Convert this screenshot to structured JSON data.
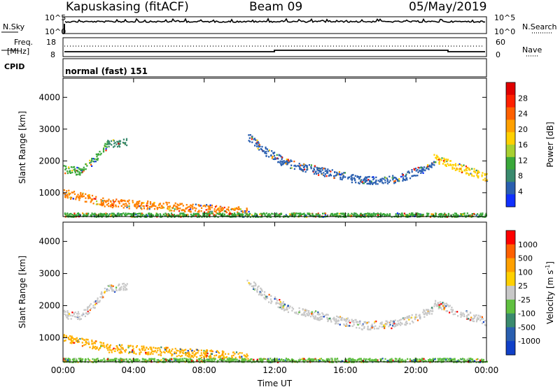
{
  "header": {
    "station": "Kapuskasing (fitACF)",
    "beam": "Beam 09",
    "date": "05/May/2019"
  },
  "top_panels": {
    "nsky_label": "N.Sky",
    "nsearch_label": "N.Search",
    "nsky_ticks": [
      "10^5",
      "10^0"
    ],
    "nsearch_ticks": [
      "10^5",
      "10^0"
    ],
    "freq_label_line1": "Freq.",
    "freq_label_line2": "[MHz]",
    "freq_ticks": [
      "18",
      "8"
    ],
    "nave_label": "Nave",
    "nave_ticks": [
      "60",
      "0"
    ],
    "cpid_label": "CPID",
    "cpid_text": "normal (fast) 151"
  },
  "chart_data": [
    {
      "type": "scatter",
      "title": "",
      "xlabel": "Time UT",
      "ylabel": "Slant Range [km]",
      "xlim": [
        0,
        24
      ],
      "ylim": [
        250,
        4600
      ],
      "x_ticks": [
        "00:00",
        "04:00",
        "08:00",
        "12:00",
        "16:00",
        "20:00",
        "00:00"
      ],
      "y_ticks": [
        1000,
        2000,
        3000,
        4000
      ],
      "colorbar": {
        "label": "Power [dB]",
        "ticks": [
          "4",
          "8",
          "12",
          "16",
          "20",
          "24",
          "28"
        ],
        "colors": [
          "#1030ff",
          "#2a5fb0",
          "#3a8a6e",
          "#3aa83a",
          "#a8d030",
          "#ffd000",
          "#ffa000",
          "#ff6000",
          "#ff2000",
          "#e00000"
        ]
      },
      "bands": [
        {
          "x": [
            0.0,
            1.0,
            1.8,
            2.5
          ],
          "y": [
            1750,
            1700,
            2100,
            2550
          ],
          "color": "#3aa83a"
        },
        {
          "x": [
            2.5,
            3.6
          ],
          "y": [
            2550,
            2600
          ],
          "color": "#3a8a6e"
        },
        {
          "x": [
            0.0,
            1.0,
            2.5,
            5.0,
            8.0,
            10.5
          ],
          "y": [
            1000,
            900,
            700,
            620,
            520,
            420
          ],
          "color": "#ff8000"
        },
        {
          "x": [
            10.4,
            11.5,
            12.5
          ],
          "y": [
            2800,
            2300,
            2000
          ],
          "color": "#2a5fb0"
        },
        {
          "x": [
            12.3,
            14.5,
            17.0,
            19.0,
            21.0
          ],
          "y": [
            2000,
            1700,
            1400,
            1450,
            1900
          ],
          "color": "#2a5fb0"
        },
        {
          "x": [
            21.0,
            22.5,
            24.0
          ],
          "y": [
            2100,
            1800,
            1500
          ],
          "color": "#ffd000"
        },
        {
          "x": [
            0.0,
            24.0
          ],
          "y": [
            320,
            320
          ],
          "color": "#3aa83a"
        }
      ]
    },
    {
      "type": "scatter",
      "title": "",
      "xlabel": "Time UT",
      "ylabel": "Slant Range [km]",
      "xlim": [
        0,
        24
      ],
      "ylim": [
        250,
        4600
      ],
      "x_ticks": [
        "00:00",
        "04:00",
        "08:00",
        "12:00",
        "16:00",
        "20:00",
        "00:00"
      ],
      "y_ticks": [
        1000,
        2000,
        3000,
        4000
      ],
      "colorbar": {
        "label": "Velocity [m s",
        "label_sup": "-1",
        "label_close": "]",
        "ticks": [
          "1000",
          "500",
          "100",
          "25",
          "-25",
          "-100",
          "-500",
          "-1000"
        ],
        "colors": [
          "#1040c8",
          "#2a5fb0",
          "#3a8a6e",
          "#60c040",
          "#c8c8c8",
          "#ffd000",
          "#ffa000",
          "#ff6000",
          "#ff0000"
        ]
      },
      "bands": [
        {
          "x": [
            0.0,
            1.0,
            1.8,
            2.5,
            3.6
          ],
          "y": [
            1750,
            1700,
            2100,
            2550,
            2600
          ],
          "color": "#c8c8c8"
        },
        {
          "x": [
            0.0,
            1.0,
            2.5,
            5.0,
            8.0,
            10.5
          ],
          "y": [
            1000,
            900,
            700,
            620,
            520,
            420
          ],
          "color": "#ffb000"
        },
        {
          "x": [
            10.4,
            11.5,
            12.5
          ],
          "y": [
            2800,
            2300,
            2000
          ],
          "color": "#c8c8c8"
        },
        {
          "x": [
            12.3,
            14.5,
            17.0,
            19.0,
            21.0
          ],
          "y": [
            2000,
            1700,
            1400,
            1450,
            1900
          ],
          "color": "#c8c8c8"
        },
        {
          "x": [
            21.0,
            22.5,
            24.0
          ],
          "y": [
            2100,
            1800,
            1500
          ],
          "color": "#c8c8c8"
        },
        {
          "x": [
            0.0,
            24.0
          ],
          "y": [
            320,
            320
          ],
          "color": "#60c040"
        }
      ]
    }
  ]
}
